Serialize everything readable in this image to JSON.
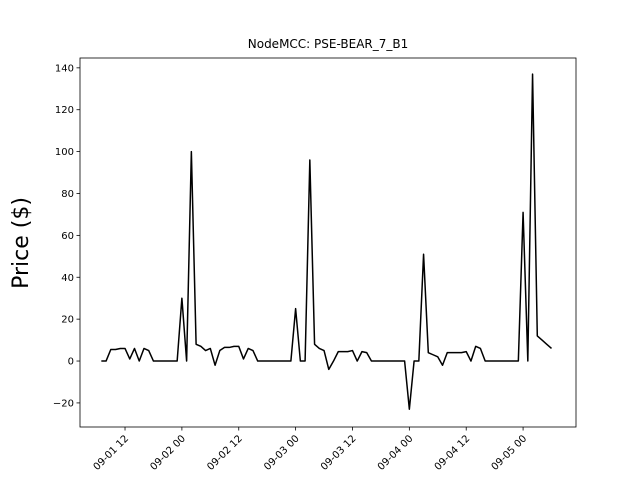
{
  "chart_data": {
    "type": "line",
    "title": "NodeMCC: PSE-BEAR_7_B1",
    "y_label": "Price ($)",
    "x": [
      "09-01 07:00",
      "09-01 08:00",
      "09-01 09:00",
      "09-01 10:00",
      "09-01 11:00",
      "09-01 12:00",
      "09-01 13:00",
      "09-01 14:00",
      "09-01 15:00",
      "09-01 16:00",
      "09-01 17:00",
      "09-01 18:00",
      "09-01 19:00",
      "09-01 20:00",
      "09-01 21:00",
      "09-01 22:00",
      "09-01 23:00",
      "09-02 00:00",
      "09-02 01:00",
      "09-02 02:00",
      "09-02 03:00",
      "09-02 04:00",
      "09-02 05:00",
      "09-02 06:00",
      "09-02 07:00",
      "09-02 08:00",
      "09-02 09:00",
      "09-02 10:00",
      "09-02 11:00",
      "09-02 12:00",
      "09-02 13:00",
      "09-02 14:00",
      "09-02 15:00",
      "09-02 16:00",
      "09-02 17:00",
      "09-02 18:00",
      "09-02 19:00",
      "09-02 20:00",
      "09-02 21:00",
      "09-02 22:00",
      "09-02 23:00",
      "09-03 00:00",
      "09-03 01:00",
      "09-03 02:00",
      "09-03 03:00",
      "09-03 04:00",
      "09-03 05:00",
      "09-03 06:00",
      "09-03 07:00",
      "09-03 08:00",
      "09-03 09:00",
      "09-03 10:00",
      "09-03 11:00",
      "09-03 12:00",
      "09-03 13:00",
      "09-03 14:00",
      "09-03 15:00",
      "09-03 16:00",
      "09-03 17:00",
      "09-03 18:00",
      "09-03 19:00",
      "09-03 20:00",
      "09-03 21:00",
      "09-03 22:00",
      "09-03 23:00",
      "09-04 00:00",
      "09-04 01:00",
      "09-04 02:00",
      "09-04 03:00",
      "09-04 04:00",
      "09-04 05:00",
      "09-04 06:00",
      "09-04 07:00",
      "09-04 08:00",
      "09-04 09:00",
      "09-04 10:00",
      "09-04 11:00",
      "09-04 12:00",
      "09-04 13:00",
      "09-04 14:00",
      "09-04 15:00",
      "09-04 16:00",
      "09-04 17:00",
      "09-04 18:00",
      "09-04 19:00",
      "09-04 20:00",
      "09-04 21:00",
      "09-04 22:00",
      "09-04 23:00",
      "09-05 00:00",
      "09-05 01:00",
      "09-05 02:00",
      "09-05 03:00",
      "09-05 04:00",
      "09-05 05:00",
      "09-05 06:00"
    ],
    "series": [
      {
        "color": "#000000",
        "values": [
          0,
          0,
          5.5,
          5.5,
          6,
          6,
          1,
          6,
          0,
          6,
          5,
          0,
          0,
          0,
          0,
          0,
          0,
          30,
          0,
          100,
          8,
          7,
          5,
          6,
          -2,
          5,
          6.5,
          6.5,
          7,
          7,
          1,
          6,
          5,
          0,
          0,
          0,
          0,
          0,
          0,
          0,
          0,
          25,
          0,
          0,
          96,
          8,
          6,
          5,
          -4,
          0,
          4.5,
          4.5,
          4.5,
          5,
          0,
          4.5,
          4,
          0,
          0,
          0,
          0,
          0,
          0,
          0,
          0,
          -23,
          0,
          0,
          51,
          4,
          3,
          2,
          -2,
          4,
          4,
          4,
          4,
          4.5,
          0,
          7,
          6,
          0,
          0,
          0,
          0,
          0,
          0,
          0,
          0,
          71,
          0,
          137,
          12,
          10,
          8,
          6
        ]
      }
    ],
    "xlim": [
      "09-01 02:30",
      "09-05 11:10"
    ],
    "xticks": [
      {
        "value": "09-01 12:00",
        "label": "09-01 12"
      },
      {
        "value": "09-02 00:00",
        "label": "09-02 00"
      },
      {
        "value": "09-02 12:00",
        "label": "09-02 12"
      },
      {
        "value": "09-03 00:00",
        "label": "09-03 00"
      },
      {
        "value": "09-03 12:00",
        "label": "09-03 12"
      },
      {
        "value": "09-04 00:00",
        "label": "09-04 00"
      },
      {
        "value": "09-04 12:00",
        "label": "09-04 12"
      },
      {
        "value": "09-05 00:00",
        "label": "09-05 00"
      }
    ],
    "ylim": [
      -31.5,
      144.7
    ],
    "yticks": [
      {
        "value": -20,
        "label": "−20"
      },
      0,
      20,
      40,
      60,
      80,
      100,
      120,
      140
    ]
  }
}
